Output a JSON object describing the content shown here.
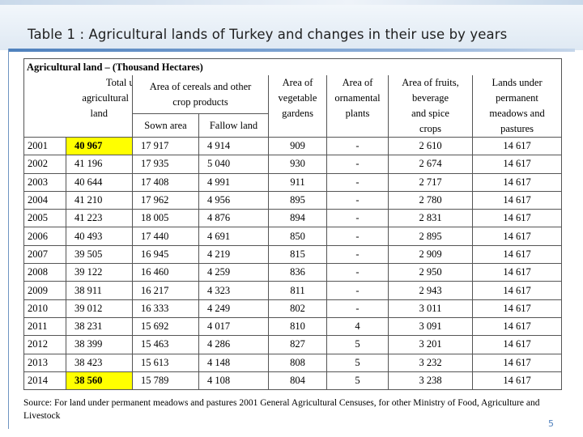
{
  "title": "Table 1 : Agricultural lands of Turkey and changes in their use by years",
  "header": {
    "group": "Agricultural land – (Thousand Hectares)",
    "total_line1": "Total utilized",
    "total_line2": "agricultural",
    "total_line3": "land",
    "cereals_line1": "Area of cereals and other",
    "cereals_line2": "crop products",
    "sown": "Sown area",
    "fallow": "Fallow land",
    "veg_line1": "Area of",
    "veg_line2": "vegetable",
    "veg_line3": "gardens",
    "orn_line1": "Area of",
    "orn_line2": "ornamental",
    "orn_line3": "plants",
    "fruit_line1": "Area of fruits,",
    "fruit_line2": "beverage",
    "fruit_line3": "and spice",
    "fruit_line4": "crops",
    "mead_line1": "Lands under",
    "mead_line2": "permanent",
    "mead_line3": "meadows and",
    "mead_line4": "pastures"
  },
  "rows": [
    {
      "year": "2001",
      "total": "40 967",
      "sown": "17 917",
      "fallow": "4 914",
      "veg": "909",
      "orn": "-",
      "fruit": "2 610",
      "mead": "14 617"
    },
    {
      "year": "2002",
      "total": "41 196",
      "sown": "17 935",
      "fallow": "5 040",
      "veg": "930",
      "orn": "-",
      "fruit": "2 674",
      "mead": "14 617"
    },
    {
      "year": "2003",
      "total": "40 644",
      "sown": "17 408",
      "fallow": "4 991",
      "veg": "911",
      "orn": "-",
      "fruit": "2 717",
      "mead": "14 617"
    },
    {
      "year": "2004",
      "total": "41 210",
      "sown": "17 962",
      "fallow": "4 956",
      "veg": "895",
      "orn": "-",
      "fruit": "2 780",
      "mead": "14 617"
    },
    {
      "year": "2005",
      "total": "41 223",
      "sown": "18 005",
      "fallow": "4 876",
      "veg": "894",
      "orn": "-",
      "fruit": "2 831",
      "mead": "14 617"
    },
    {
      "year": "2006",
      "total": "40 493",
      "sown": "17 440",
      "fallow": "4 691",
      "veg": "850",
      "orn": "-",
      "fruit": "2 895",
      "mead": "14 617"
    },
    {
      "year": "2007",
      "total": "39 505",
      "sown": "16 945",
      "fallow": "4 219",
      "veg": "815",
      "orn": "-",
      "fruit": "2 909",
      "mead": "14 617"
    },
    {
      "year": "2008",
      "total": "39 122",
      "sown": "16 460",
      "fallow": "4 259",
      "veg": "836",
      "orn": "-",
      "fruit": "2 950",
      "mead": "14 617"
    },
    {
      "year": "2009",
      "total": "38 911",
      "sown": "16 217",
      "fallow": "4 323",
      "veg": "811",
      "orn": "-",
      "fruit": "2 943",
      "mead": "14 617"
    },
    {
      "year": "2010",
      "total": "39 012",
      "sown": "16 333",
      "fallow": "4 249",
      "veg": "802",
      "orn": "-",
      "fruit": "3 011",
      "mead": "14 617"
    },
    {
      "year": "2011",
      "total": "38 231",
      "sown": "15 692",
      "fallow": "4 017",
      "veg": "810",
      "orn": "4",
      "fruit": "3 091",
      "mead": "14 617"
    },
    {
      "year": "2012",
      "total": "38 399",
      "sown": "15 463",
      "fallow": "4 286",
      "veg": "827",
      "orn": "5",
      "fruit": "3 201",
      "mead": "14 617"
    },
    {
      "year": "2013",
      "total": "38 423",
      "sown": "15 613",
      "fallow": "4 148",
      "veg": "808",
      "orn": "5",
      "fruit": "3 232",
      "mead": "14 617"
    },
    {
      "year": "2014",
      "total": "38 560",
      "sown": "15 789",
      "fallow": "4 108",
      "veg": "804",
      "orn": "5",
      "fruit": "3 238",
      "mead": "14 617"
    }
  ],
  "highlight_color": "#ffff00",
  "source": "Source: For land under permanent meadows and pastures 2001 General Agricultural Censuses, for other Ministry of Food, Agriculture and Livestock",
  "page_number": "5"
}
